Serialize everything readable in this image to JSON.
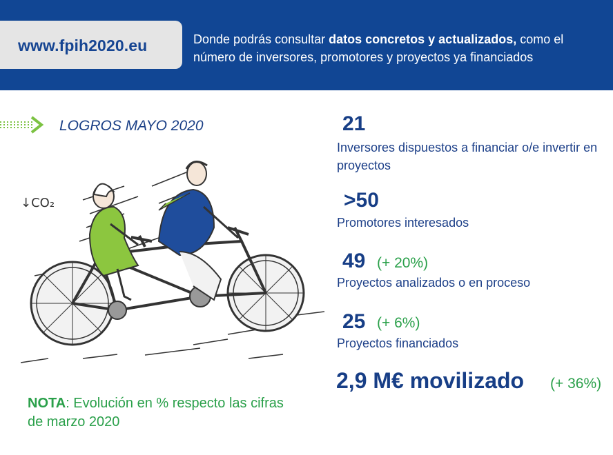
{
  "banner": {
    "url": "www.fpih2020.eu",
    "text_before": "Donde podrás consultar ",
    "text_bold": "datos concretos y actualizados,",
    "text_after": " como el número de inversores, promotores y proyectos ya financiados"
  },
  "section_title": "LOGROS MAYO 2020",
  "illustration": {
    "co2_label": "↓CO₂"
  },
  "stats": [
    {
      "value": "21",
      "delta": "",
      "label": "Inversores dispuestos a financiar o/e invertir en proyectos"
    },
    {
      "value": ">50",
      "delta": "",
      "label": "Promotores interesados"
    },
    {
      "value": "49",
      "delta": "(+ 20%)",
      "label": "Proyectos analizados o en proceso"
    },
    {
      "value": "25",
      "delta": "(+ 6%)",
      "label": "Proyectos financiados"
    }
  ],
  "mobilized": {
    "value": "2,9 M€ movilizado",
    "delta": "(+ 36%)"
  },
  "nota": {
    "label": "NOTA",
    "text": ": Evolución en % respecto las cifras de marzo 2020"
  },
  "colors": {
    "banner": "#114694",
    "accent_green": "#2aa04a",
    "text_blue": "#173e86",
    "pill": "#e5e5e5"
  }
}
